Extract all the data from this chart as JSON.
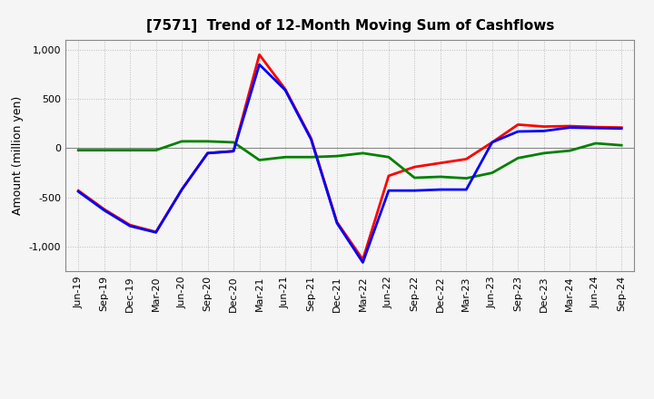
{
  "title": "[7571]  Trend of 12-Month Moving Sum of Cashflows",
  "ylabel": "Amount (million yen)",
  "xlabels": [
    "Jun-19",
    "Sep-19",
    "Dec-19",
    "Mar-20",
    "Jun-20",
    "Sep-20",
    "Dec-20",
    "Mar-21",
    "Jun-21",
    "Sep-21",
    "Dec-21",
    "Mar-22",
    "Jun-22",
    "Sep-22",
    "Dec-22",
    "Mar-23",
    "Jun-23",
    "Sep-23",
    "Dec-23",
    "Mar-24",
    "Jun-24",
    "Sep-24"
  ],
  "operating_cashflow": [
    -430,
    -620,
    -780,
    -850,
    -420,
    -50,
    -30,
    950,
    600,
    100,
    -750,
    -1130,
    -280,
    -190,
    -150,
    -110,
    60,
    240,
    220,
    225,
    215,
    210
  ],
  "investing_cashflow": [
    -20,
    -20,
    -20,
    -20,
    70,
    70,
    60,
    -120,
    -90,
    -90,
    -80,
    -50,
    -90,
    -300,
    -290,
    -305,
    -250,
    -100,
    -50,
    -25,
    50,
    30
  ],
  "free_cashflow": [
    -440,
    -630,
    -790,
    -855,
    -420,
    -50,
    -30,
    850,
    590,
    90,
    -760,
    -1160,
    -430,
    -430,
    -420,
    -420,
    60,
    170,
    175,
    210,
    205,
    200
  ],
  "operating_color": "#ff0000",
  "investing_color": "#008000",
  "free_color": "#0000ff",
  "ylim": [
    -1250,
    1100
  ],
  "yticks": [
    -1000,
    -500,
    0,
    500,
    1000
  ],
  "bg_color": "#f5f5f5",
  "plot_bg_color": "#f5f5f5",
  "grid_color": "#bbbbbb",
  "title_fontsize": 11,
  "axis_fontsize": 8,
  "ylabel_fontsize": 9,
  "linewidth": 2.0
}
